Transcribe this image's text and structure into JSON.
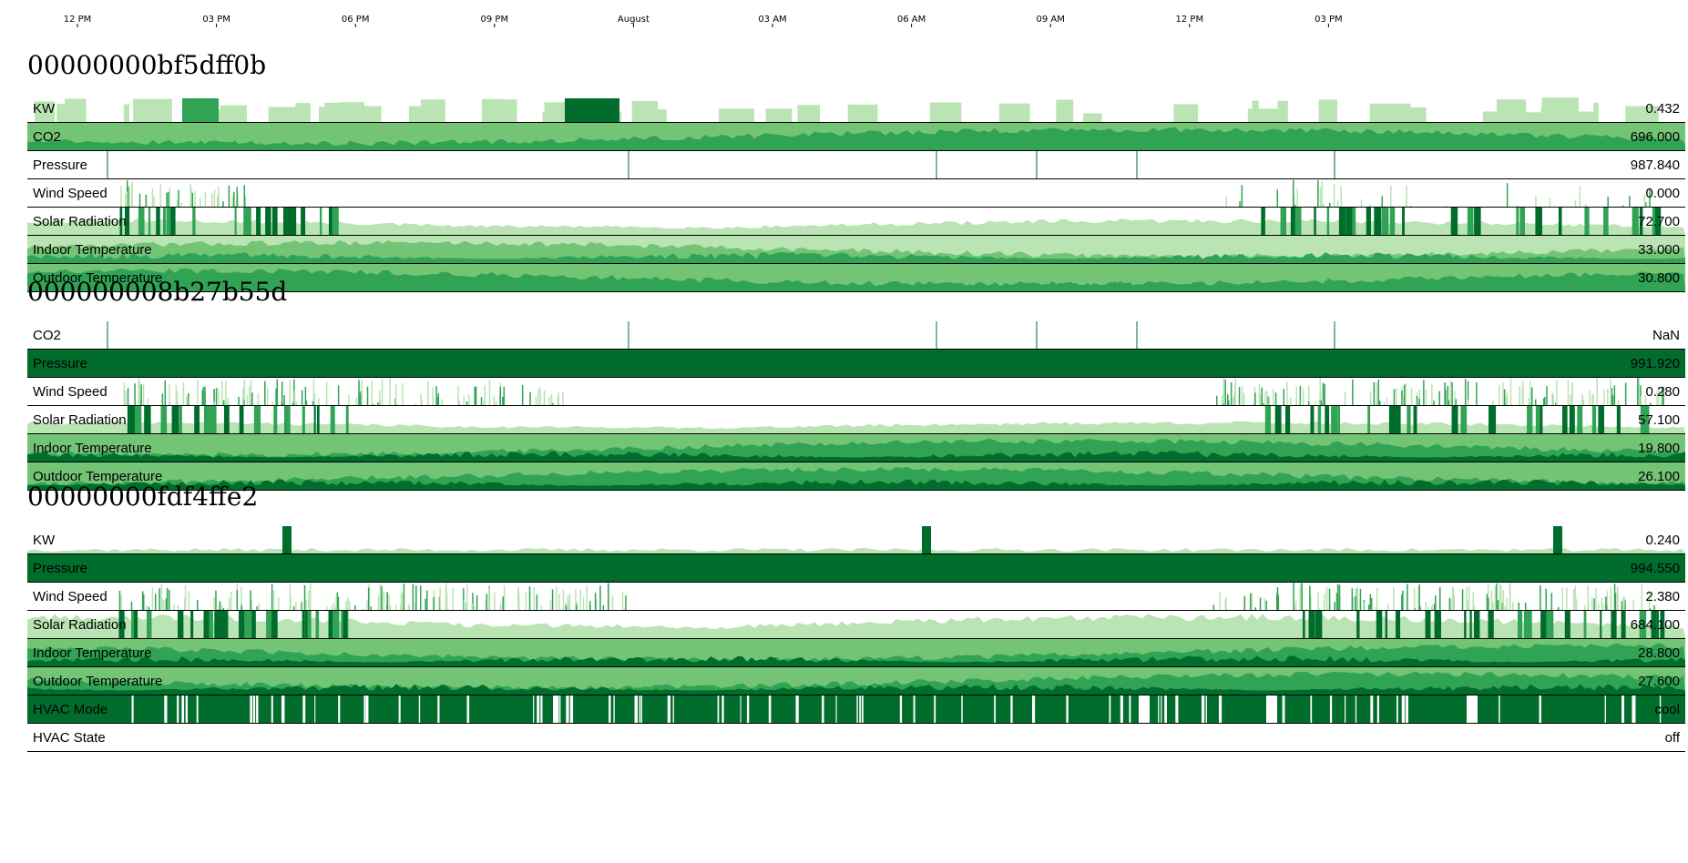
{
  "axis": {
    "ticks": [
      "12 PM",
      "03 PM",
      "06 PM",
      "09 PM",
      "August",
      "03 AM",
      "06 AM",
      "09 AM",
      "12 PM",
      "03 PM"
    ]
  },
  "colors": {
    "band1": "#bae4b3",
    "band2": "#74c476",
    "band3": "#31a354",
    "band4": "#006d2c",
    "border": "#000000"
  },
  "devices": [
    {
      "id": "00000000bf5dff0b",
      "rows": [
        {
          "label": "KW",
          "value": "0.432",
          "kind": "sparse",
          "level": 0.3
        },
        {
          "label": "CO2",
          "value": "696.000",
          "kind": "band",
          "level": 0.7
        },
        {
          "label": "Pressure",
          "value": "987.840",
          "kind": "flat",
          "level": 0.05
        },
        {
          "label": "Wind Speed",
          "value": "0.000",
          "kind": "spiky",
          "level": 0.2
        },
        {
          "label": "Solar Radiation",
          "value": "72.700",
          "kind": "solar",
          "level": 0.6
        },
        {
          "label": "Indoor Temperature",
          "value": "33.000",
          "kind": "band",
          "level": 0.35
        },
        {
          "label": "Outdoor Temperature",
          "value": "30.800",
          "kind": "band",
          "level": 0.8
        }
      ]
    },
    {
      "id": "000000008b27b55d",
      "rows": [
        {
          "label": "CO2",
          "value": "NaN",
          "kind": "flat",
          "level": 0.0
        },
        {
          "label": "Pressure",
          "value": "991.920",
          "kind": "full",
          "level": 1.0
        },
        {
          "label": "Wind Speed",
          "value": "0.280",
          "kind": "spiky",
          "level": 0.7
        },
        {
          "label": "Solar Radiation",
          "value": "57.100",
          "kind": "solar",
          "level": 0.45
        },
        {
          "label": "Indoor Temperature",
          "value": "19.800",
          "kind": "band",
          "level": 0.9
        },
        {
          "label": "Outdoor Temperature",
          "value": "26.100",
          "kind": "band",
          "level": 0.85
        }
      ]
    },
    {
      "id": "00000000fdf4ffe2",
      "rows": [
        {
          "label": "KW",
          "value": "0.240",
          "kind": "kw",
          "level": 0.15
        },
        {
          "label": "Pressure",
          "value": "994.550",
          "kind": "full",
          "level": 1.0
        },
        {
          "label": "Wind Speed",
          "value": "2.380",
          "kind": "spiky",
          "level": 0.8
        },
        {
          "label": "Solar Radiation",
          "value": "684.100",
          "kind": "solar",
          "level": 0.9
        },
        {
          "label": "Indoor Temperature",
          "value": "28.800",
          "kind": "band",
          "level": 0.9
        },
        {
          "label": "Outdoor Temperature",
          "value": "27.600",
          "kind": "band",
          "level": 0.85
        },
        {
          "label": "HVAC Mode",
          "value": "cool",
          "kind": "hvac",
          "level": 1.0
        },
        {
          "label": "HVAC State",
          "value": "off",
          "kind": "empty",
          "level": 0.0
        }
      ]
    }
  ]
}
